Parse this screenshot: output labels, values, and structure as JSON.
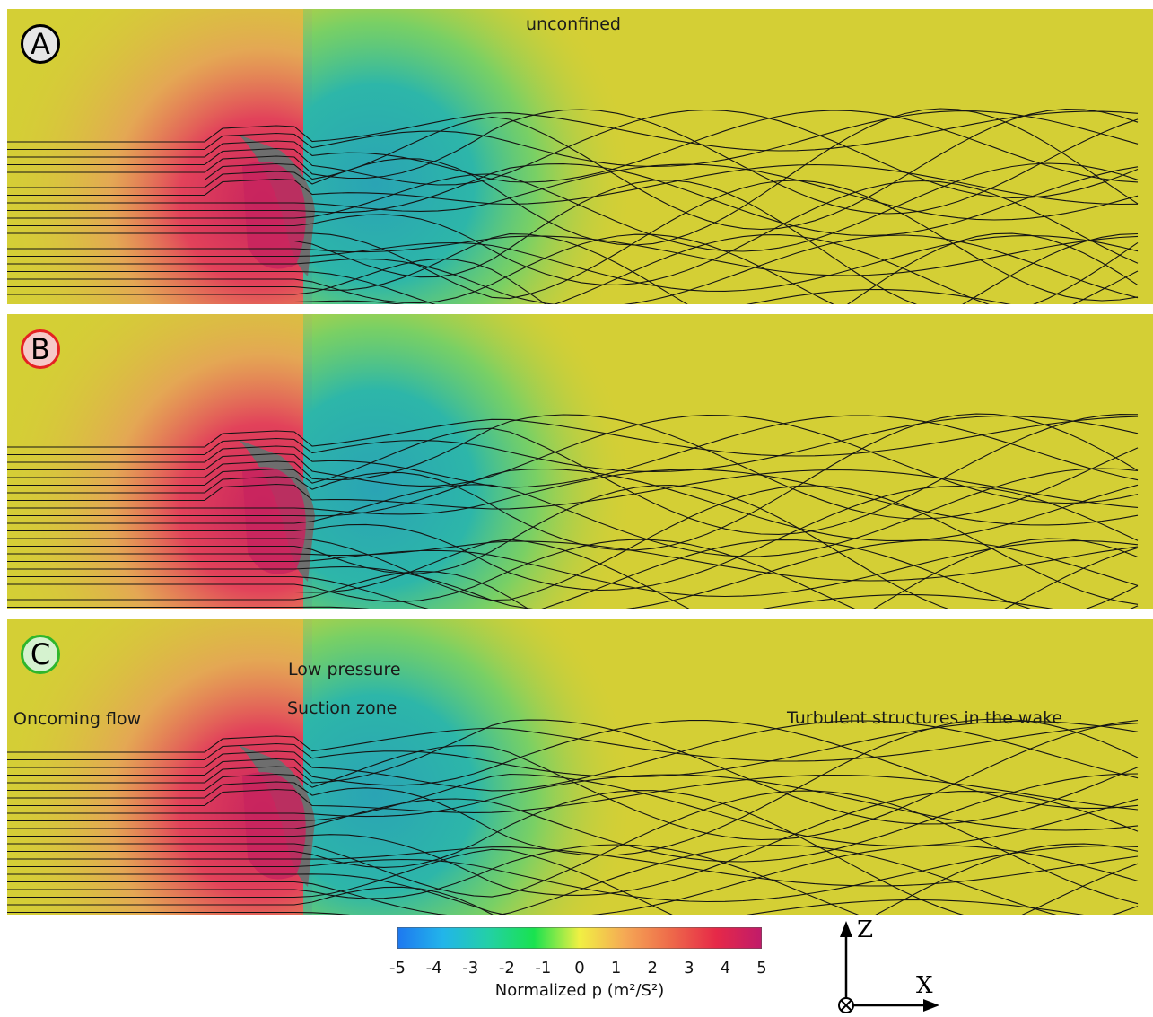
{
  "panels": [
    {
      "badge": "A",
      "badge_color": "#e6e6e6",
      "badge_border": "#000000",
      "title": "unconfined"
    },
    {
      "badge": "B",
      "badge_color": "#f6c8c8",
      "badge_border": "#e52222",
      "title": ""
    },
    {
      "badge": "C",
      "badge_color": "#d5f2cf",
      "badge_border": "#2fb62b",
      "title": ""
    }
  ],
  "annotations": {
    "oncoming": "Oncoming flow",
    "low_pressure": "Low pressure",
    "suction": "Suction zone",
    "wake": "Turbulent structures in the wake"
  },
  "colorbar": {
    "ticks": [
      "-5",
      "-4",
      "-3",
      "-2",
      "-1",
      "0",
      "1",
      "2",
      "3",
      "4",
      "5"
    ],
    "label": "Normalized p (m²/S²)",
    "colors": [
      "#1e78f0",
      "#22b5ea",
      "#23d0a6",
      "#19e24f",
      "#f1f043",
      "#f5a855",
      "#ee6a4a",
      "#e62948",
      "#c01b6a"
    ]
  },
  "axes": {
    "z": "Z",
    "x": "X"
  },
  "colors": {
    "background_field": "#d4cf35",
    "high_pressure": "#c8245e",
    "low_pressure": "#2aa4b4",
    "obstacle": "#6e6e6e",
    "streamline": "#141414"
  }
}
